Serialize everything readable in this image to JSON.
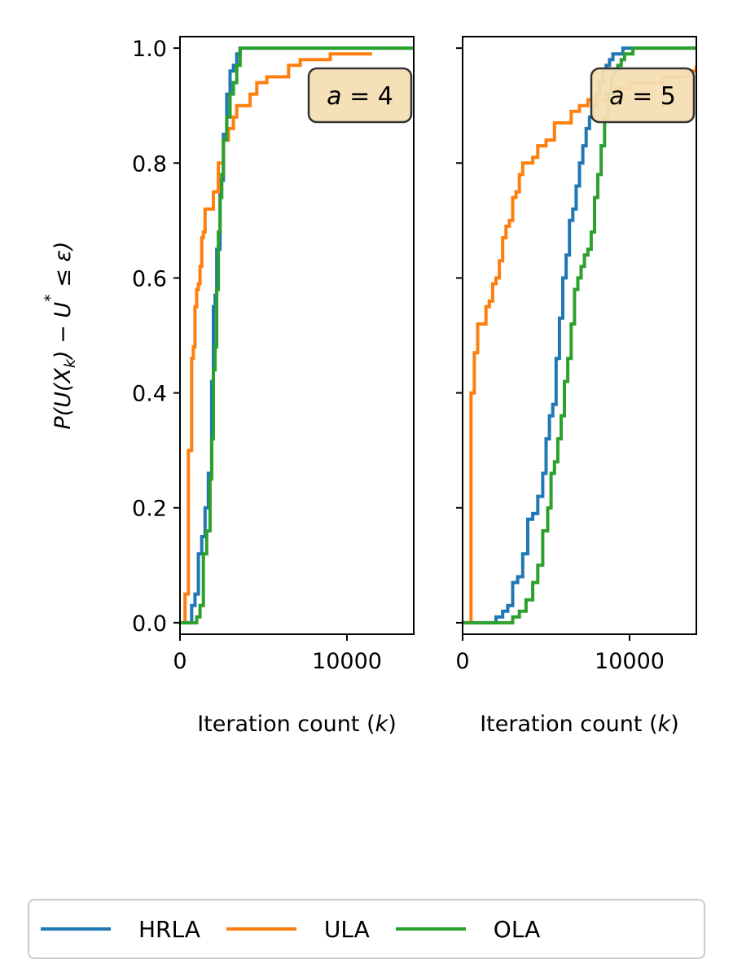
{
  "chart_data": {
    "type": "line",
    "ylabel": "P(U(X_k) − U* ≤ ε)",
    "legend_position": "bottom-center",
    "series_colors": {
      "HRLA": "#1f77b4",
      "ULA": "#ff7f0e",
      "OLA": "#2ca02c"
    },
    "legend": [
      "HRLA",
      "ULA",
      "OLA"
    ],
    "panels": [
      {
        "annotation": "a = 4",
        "xlabel": "Iteration count (k)",
        "xlim": [
          0,
          14000
        ],
        "ylim": [
          -0.02,
          1.02
        ],
        "xticks": [
          "0",
          "10000"
        ],
        "yticks": [
          "0.0",
          "0.2",
          "0.4",
          "0.6",
          "0.8",
          "1.0"
        ],
        "series": [
          {
            "name": "HRLA",
            "x": [
              0,
              400,
              700,
              900,
              1100,
              1300,
              1500,
              1700,
              1900,
              2000,
              2100,
              2200,
              2400,
              2600,
              2800,
              3000,
              3200,
              3400,
              3600,
              14000
            ],
            "y": [
              0.0,
              0.0,
              0.03,
              0.05,
              0.12,
              0.15,
              0.2,
              0.26,
              0.42,
              0.55,
              0.57,
              0.65,
              0.77,
              0.85,
              0.92,
              0.96,
              0.97,
              0.99,
              1.0,
              1.0
            ]
          },
          {
            "name": "ULA",
            "x": [
              0,
              300,
              500,
              700,
              800,
              900,
              1000,
              1100,
              1200,
              1300,
              1400,
              1500,
              1700,
              2000,
              2300,
              2600,
              2900,
              3200,
              3400,
              3800,
              4200,
              4600,
              5200,
              5800,
              6500,
              7200,
              8000,
              9000,
              10000,
              11500
            ],
            "y": [
              0.0,
              0.05,
              0.3,
              0.46,
              0.48,
              0.55,
              0.58,
              0.59,
              0.62,
              0.67,
              0.68,
              0.72,
              0.72,
              0.75,
              0.8,
              0.84,
              0.86,
              0.88,
              0.9,
              0.9,
              0.92,
              0.94,
              0.95,
              0.95,
              0.97,
              0.98,
              0.98,
              0.99,
              0.99,
              0.99
            ]
          },
          {
            "name": "OLA",
            "x": [
              0,
              700,
              1000,
              1200,
              1400,
              1600,
              1800,
              1900,
              2000,
              2100,
              2200,
              2300,
              2400,
              2500,
              2600,
              2800,
              3000,
              3200,
              3400,
              3600,
              14000
            ],
            "y": [
              0.0,
              0.0,
              0.01,
              0.03,
              0.12,
              0.16,
              0.25,
              0.32,
              0.44,
              0.48,
              0.58,
              0.68,
              0.74,
              0.78,
              0.84,
              0.88,
              0.92,
              0.94,
              0.97,
              1.0,
              1.0
            ]
          }
        ]
      },
      {
        "annotation": "a = 5",
        "xlabel": "Iteration count (k)",
        "xlim": [
          0,
          14000
        ],
        "ylim": [
          -0.02,
          1.02
        ],
        "xticks": [
          "0",
          "10000"
        ],
        "yticks": [],
        "series": [
          {
            "name": "HRLA",
            "x": [
              0,
              1500,
              2000,
              2400,
              2700,
              3000,
              3300,
              3600,
              3900,
              4200,
              4500,
              4800,
              5000,
              5200,
              5400,
              5600,
              5800,
              6000,
              6200,
              6400,
              6600,
              6800,
              7000,
              7200,
              7400,
              7600,
              7800,
              8000,
              8200,
              8400,
              8600,
              8800,
              9000,
              9200,
              9400,
              9600,
              9800,
              10000,
              14000
            ],
            "y": [
              0.0,
              0.0,
              0.01,
              0.02,
              0.03,
              0.07,
              0.08,
              0.12,
              0.18,
              0.19,
              0.22,
              0.26,
              0.32,
              0.36,
              0.38,
              0.46,
              0.53,
              0.6,
              0.64,
              0.7,
              0.72,
              0.76,
              0.8,
              0.83,
              0.86,
              0.88,
              0.9,
              0.92,
              0.94,
              0.96,
              0.97,
              0.98,
              0.99,
              0.99,
              0.99,
              1.0,
              1.0,
              1.0,
              1.0
            ]
          },
          {
            "name": "ULA",
            "x": [
              0,
              400,
              500,
              700,
              900,
              1100,
              1400,
              1600,
              1800,
              2000,
              2200,
              2400,
              2600,
              2800,
              3000,
              3200,
              3400,
              3600,
              3800,
              4000,
              4200,
              4500,
              5000,
              5500,
              6000,
              6500,
              7000,
              7500,
              8000,
              8500,
              9000,
              10000,
              12000,
              13500,
              14000
            ],
            "y": [
              0.0,
              0.0,
              0.4,
              0.47,
              0.52,
              0.52,
              0.55,
              0.56,
              0.59,
              0.6,
              0.63,
              0.67,
              0.69,
              0.7,
              0.74,
              0.75,
              0.78,
              0.8,
              0.8,
              0.8,
              0.81,
              0.83,
              0.84,
              0.87,
              0.87,
              0.89,
              0.9,
              0.91,
              0.91,
              0.92,
              0.93,
              0.94,
              0.95,
              0.96,
              0.97
            ]
          },
          {
            "name": "OLA",
            "x": [
              0,
              2800,
              3000,
              3400,
              3800,
              4200,
              4500,
              4800,
              5100,
              5300,
              5500,
              5700,
              5900,
              6100,
              6300,
              6500,
              6700,
              6900,
              7100,
              7300,
              7500,
              7700,
              7900,
              8100,
              8300,
              8500,
              8700,
              8900,
              9100,
              9300,
              9500,
              9700,
              9900,
              10200,
              10500,
              14000
            ],
            "y": [
              0.0,
              0.0,
              0.01,
              0.02,
              0.04,
              0.07,
              0.1,
              0.16,
              0.2,
              0.26,
              0.28,
              0.32,
              0.36,
              0.42,
              0.46,
              0.52,
              0.58,
              0.6,
              0.62,
              0.64,
              0.65,
              0.68,
              0.74,
              0.78,
              0.83,
              0.88,
              0.92,
              0.95,
              0.96,
              0.97,
              0.98,
              0.99,
              0.99,
              1.0,
              1.0,
              1.0
            ]
          }
        ]
      }
    ]
  }
}
